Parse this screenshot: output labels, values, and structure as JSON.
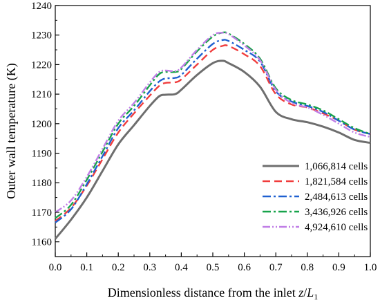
{
  "chart_data": {
    "type": "line",
    "title": "",
    "xlabel": "Dimensionless distance from the inlet z/L1",
    "xlabel_parts": {
      "prefix": "Dimensionless distance from the inlet ",
      "var_z": "z",
      "slash": "/",
      "var_L": "L",
      "sub": "1"
    },
    "ylabel": "Outer wall temperature (K)",
    "xlim": [
      0.0,
      1.0
    ],
    "ylim": [
      1155,
      1240
    ],
    "xticks": [
      "0.0",
      "0.1",
      "0.2",
      "0.3",
      "0.4",
      "0.5",
      "0.6",
      "0.7",
      "0.8",
      "0.9",
      "1.0"
    ],
    "yticks": [
      "1160",
      "1170",
      "1180",
      "1190",
      "1200",
      "1210",
      "1220",
      "1230",
      "1240"
    ],
    "legend_position": "center-right",
    "grid": false,
    "x": [
      0.0,
      0.05,
      0.1,
      0.15,
      0.2,
      0.25,
      0.3,
      0.33,
      0.35,
      0.38,
      0.4,
      0.45,
      0.5,
      0.53,
      0.55,
      0.6,
      0.65,
      0.7,
      0.75,
      0.8,
      0.85,
      0.9,
      0.95,
      1.0
    ],
    "series": [
      {
        "name": "1,066,814 cells",
        "color": "#6e6e6e",
        "dash": "solid",
        "values": [
          1161.0,
          1167.5,
          1175.0,
          1184.0,
          1193.0,
          1199.5,
          1206.0,
          1209.3,
          1209.8,
          1210.0,
          1211.5,
          1216.5,
          1220.5,
          1221.3,
          1220.5,
          1217.5,
          1212.5,
          1204.0,
          1201.5,
          1200.5,
          1199.0,
          1197.0,
          1194.5,
          1193.5
        ]
      },
      {
        "name": "1,821,584 cells",
        "color": "#f03c3c",
        "dash": "dashed",
        "values": [
          1167.0,
          1171.5,
          1179.0,
          1188.0,
          1197.0,
          1203.5,
          1209.5,
          1212.8,
          1213.8,
          1214.0,
          1215.0,
          1220.0,
          1225.0,
          1226.3,
          1226.3,
          1223.5,
          1219.5,
          1210.0,
          1206.5,
          1205.5,
          1203.5,
          1201.0,
          1198.0,
          1196.5
        ]
      },
      {
        "name": "2,484,613 cells",
        "color": "#1f60d0",
        "dash": "dashdot",
        "values": [
          1166.5,
          1171.0,
          1179.5,
          1189.0,
          1198.5,
          1204.5,
          1211.0,
          1214.3,
          1215.3,
          1215.5,
          1216.5,
          1222.0,
          1227.0,
          1228.3,
          1228.0,
          1225.0,
          1221.0,
          1211.0,
          1207.5,
          1206.0,
          1204.0,
          1201.0,
          1198.0,
          1196.5
        ]
      },
      {
        "name": "3,436,926 cells",
        "color": "#17a34a",
        "dash": "dashdot",
        "values": [
          1168.0,
          1172.5,
          1181.0,
          1190.5,
          1200.0,
          1206.0,
          1213.0,
          1216.8,
          1217.5,
          1217.5,
          1218.5,
          1224.5,
          1229.5,
          1230.8,
          1230.5,
          1227.0,
          1222.0,
          1212.0,
          1208.0,
          1206.5,
          1204.5,
          1201.5,
          1198.5,
          1196.5
        ]
      },
      {
        "name": "4,924,610 cells",
        "color": "#c07ee6",
        "dash": "dashdotdot",
        "values": [
          1170.0,
          1174.0,
          1182.0,
          1191.5,
          1201.0,
          1207.0,
          1214.0,
          1217.5,
          1218.0,
          1217.8,
          1219.0,
          1225.0,
          1230.0,
          1230.8,
          1230.3,
          1226.5,
          1221.5,
          1211.5,
          1207.0,
          1205.5,
          1203.0,
          1200.0,
          1197.0,
          1195.5
        ]
      }
    ]
  }
}
